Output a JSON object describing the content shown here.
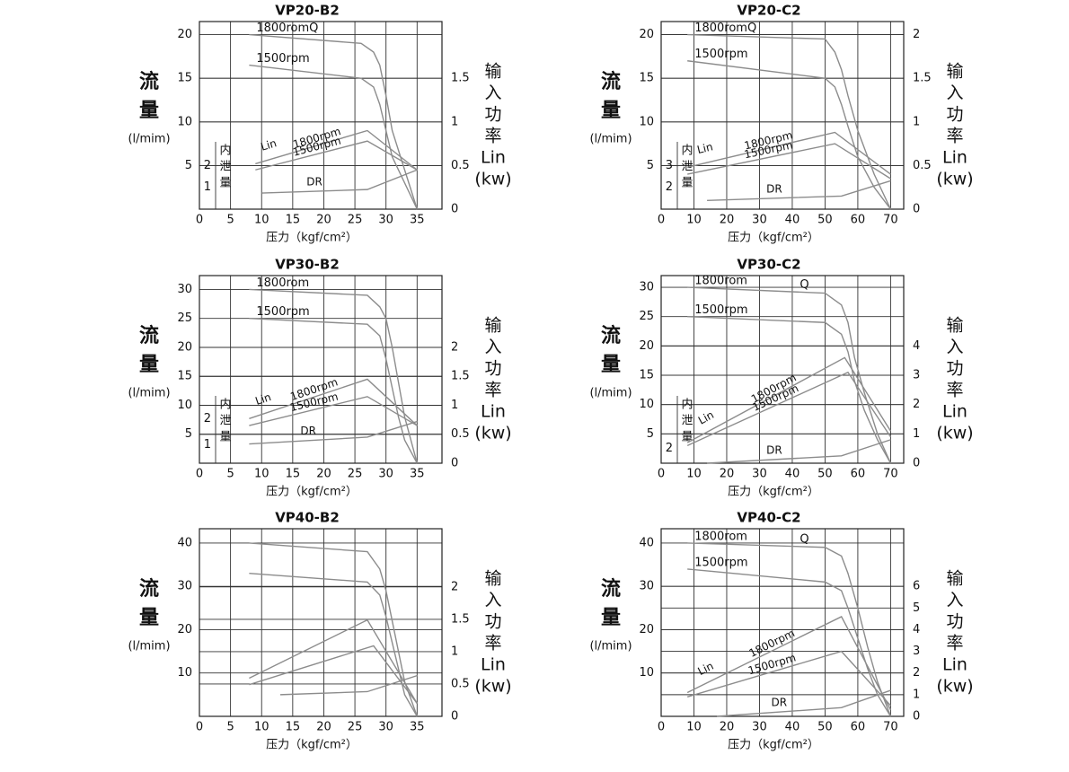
{
  "chart_data": [
    {
      "type": "line",
      "title": "VP20-B2",
      "x_label": "压力（kgf/cm²）",
      "y_label": [
        "流",
        "量"
      ],
      "y_unit": "(l/mim)",
      "y2_label": [
        "输",
        "入",
        "功",
        "率",
        "Lin",
        "(kw)"
      ],
      "leak_label": [
        "内",
        "泄",
        "量"
      ],
      "lin_mark": "Lin",
      "color": "#8c8c8c",
      "grid": true,
      "xlim": [
        0,
        39
      ],
      "xticks": [
        0,
        5,
        10,
        15,
        20,
        25,
        30,
        35
      ],
      "ylim": [
        0,
        21.5
      ],
      "yticks": [
        5,
        10,
        15,
        20
      ],
      "y2lim": [
        0,
        2.15
      ],
      "y2ticks": [
        0,
        0.5,
        1,
        1.5
      ],
      "y3lim": [
        0,
        8.6
      ],
      "y3ticks": [
        1,
        2
      ],
      "series": [
        {
          "name": "1800romQ",
          "axis": "y",
          "x": [
            8,
            26,
            28,
            29,
            30,
            31,
            33,
            35
          ],
          "values": [
            20,
            19,
            18,
            16.5,
            13,
            9,
            4.5,
            0
          ]
        },
        {
          "name": "1500rpm",
          "axis": "y",
          "x": [
            8,
            26,
            28,
            29,
            30,
            31,
            33,
            35
          ],
          "values": [
            16.5,
            15,
            14,
            12,
            9,
            6,
            3,
            0
          ]
        },
        {
          "name": "1800rpm",
          "axis": "y2",
          "x": [
            9,
            27,
            35
          ],
          "values": [
            0.52,
            0.9,
            0.45
          ]
        },
        {
          "name": "1500rpm",
          "axis": "y2",
          "x": [
            9,
            27,
            35
          ],
          "values": [
            0.45,
            0.78,
            0.45
          ]
        },
        {
          "name": "DR",
          "axis": "y3",
          "x": [
            10,
            27,
            35
          ],
          "values": [
            0.74,
            0.9,
            1.8
          ]
        }
      ]
    },
    {
      "type": "line",
      "title": "VP20-C2",
      "x_label": "压力（kgf/cm²）",
      "y_label": [
        "流",
        "量"
      ],
      "y_unit": "(l/mim)",
      "y2_label": [
        "输",
        "入",
        "功",
        "率",
        "Lin",
        "(kw)"
      ],
      "leak_label": [
        "内",
        "泄",
        "量"
      ],
      "lin_mark": "Lin",
      "color": "#8c8c8c",
      "grid": true,
      "xlim": [
        0,
        74
      ],
      "xticks": [
        0,
        10,
        20,
        30,
        40,
        50,
        60,
        70
      ],
      "ylim": [
        0,
        21.5
      ],
      "yticks": [
        5,
        10,
        15,
        20
      ],
      "y2lim": [
        0,
        2.15
      ],
      "y2ticks": [
        0,
        0.5,
        1,
        1.5,
        2
      ],
      "y3lim": [
        1,
        9.6
      ],
      "y3ticks": [
        2,
        3
      ],
      "series": [
        {
          "name": "1800romQ",
          "axis": "y",
          "x": [
            8,
            50,
            53,
            55,
            57,
            60,
            65,
            70
          ],
          "values": [
            20,
            19.5,
            18,
            16,
            13,
            9,
            4,
            0
          ]
        },
        {
          "name": "1500rpm",
          "axis": "y",
          "x": [
            8,
            50,
            53,
            55,
            57,
            60,
            65,
            70
          ],
          "values": [
            17,
            15,
            14,
            12,
            9.5,
            6,
            2.5,
            0
          ]
        },
        {
          "name": "1800rpm",
          "axis": "y2",
          "x": [
            8,
            53,
            70
          ],
          "values": [
            0.48,
            0.88,
            0.4
          ]
        },
        {
          "name": "1500rpm",
          "axis": "y2",
          "x": [
            8,
            53,
            70
          ],
          "values": [
            0.4,
            0.75,
            0.35
          ]
        },
        {
          "name": "DR",
          "axis": "y3",
          "x": [
            14,
            55,
            70
          ],
          "values": [
            1.4,
            1.6,
            2.3
          ]
        }
      ]
    },
    {
      "type": "line",
      "title": "VP30-B2",
      "x_label": "压力（kgf/cm²）",
      "y_label": [
        "流",
        "量"
      ],
      "y_unit": "(l/mim)",
      "y2_label": [
        "输",
        "入",
        "功",
        "率",
        "Lin",
        "(kw)"
      ],
      "leak_label": [
        "内",
        "泄",
        "量"
      ],
      "lin_mark": "Lin",
      "color": "#8c8c8c",
      "grid": true,
      "xlim": [
        0,
        39
      ],
      "xticks": [
        0,
        5,
        10,
        15,
        20,
        25,
        30,
        35
      ],
      "ylim": [
        0,
        32.4
      ],
      "yticks": [
        5,
        10,
        15,
        20,
        25,
        30
      ],
      "y2lim": [
        0,
        3.24
      ],
      "y2ticks": [
        0,
        0.5,
        1,
        1.5,
        2
      ],
      "y3lim": [
        0.3,
        7.5
      ],
      "y3ticks": [
        1,
        2
      ],
      "series": [
        {
          "name": "1800rom",
          "axis": "y",
          "x": [
            8,
            27,
            29,
            30,
            31,
            32,
            33,
            35
          ],
          "values": [
            30,
            29,
            27,
            25,
            20,
            14,
            8,
            0
          ]
        },
        {
          "name": "1500rpm",
          "axis": "y",
          "x": [
            8,
            27,
            29,
            30,
            31,
            32,
            33,
            35
          ],
          "values": [
            25,
            24,
            22,
            18,
            13,
            8,
            4,
            0
          ]
        },
        {
          "name": "1800rpm",
          "axis": "y2",
          "x": [
            8,
            27,
            35
          ],
          "values": [
            0.77,
            1.45,
            0.65
          ]
        },
        {
          "name": "1500rpm",
          "axis": "y2",
          "x": [
            8,
            27,
            35
          ],
          "values": [
            0.65,
            1.15,
            0.65
          ]
        },
        {
          "name": "DR",
          "axis": "y3",
          "x": [
            8,
            27,
            35
          ],
          "values": [
            1.04,
            1.3,
            1.9
          ]
        }
      ]
    },
    {
      "type": "line",
      "title": "VP30-C2",
      "x_label": "压力（kgf/cm²）",
      "y_label": [
        "流",
        "量"
      ],
      "y_unit": "(l/mim)",
      "y2_label": [
        "输",
        "入",
        "功",
        "率",
        "Lin",
        "(kw)"
      ],
      "leak_label": [
        "内",
        "泄",
        "量"
      ],
      "lin_mark": "Lin",
      "q_mark": "Q",
      "color": "#8c8c8c",
      "grid": true,
      "xlim": [
        0,
        74
      ],
      "xticks": [
        0,
        10,
        20,
        30,
        40,
        50,
        60,
        70
      ],
      "ylim": [
        0,
        32
      ],
      "yticks": [
        5,
        10,
        15,
        20,
        25,
        30
      ],
      "y2lim": [
        0,
        6.4
      ],
      "y2ticks": [
        0,
        1,
        2,
        3,
        4
      ],
      "y3lim": [
        1,
        13.8
      ],
      "y3ticks": [
        2
      ],
      "series": [
        {
          "name": "1800rom",
          "axis": "y",
          "x": [
            8,
            50,
            55,
            57,
            59,
            62,
            66,
            70
          ],
          "values": [
            30,
            29,
            27,
            24,
            18,
            12,
            5,
            0
          ]
        },
        {
          "name": "1500rpm",
          "axis": "y",
          "x": [
            8,
            50,
            55,
            57,
            59,
            62,
            66,
            70
          ],
          "values": [
            25,
            24,
            22,
            19,
            14,
            9,
            4,
            0
          ]
        },
        {
          "name": "1800rpm",
          "axis": "y2",
          "x": [
            8,
            56,
            70
          ],
          "values": [
            0.7,
            3.6,
            1.1
          ]
        },
        {
          "name": "1500rpm",
          "axis": "y2",
          "x": [
            8,
            57,
            70
          ],
          "values": [
            0.6,
            3.1,
            0.9
          ]
        },
        {
          "name": "DR",
          "axis": "y3",
          "x": [
            14,
            55,
            70
          ],
          "values": [
            1,
            1.5,
            2.6
          ]
        }
      ]
    },
    {
      "type": "line",
      "title": "VP40-B2",
      "x_label": "压力（kgf/cm²）",
      "y_label": [
        "流",
        "量"
      ],
      "y_unit": "(l/mim)",
      "y2_label": [
        "输",
        "入",
        "功",
        "率",
        "Lin",
        "(kw)"
      ],
      "color": "#8c8c8c",
      "grid": true,
      "xlim": [
        0,
        39
      ],
      "xticks": [
        0,
        5,
        10,
        15,
        20,
        25,
        30,
        35
      ],
      "ylim": [
        0,
        43.3
      ],
      "yticks": [
        10,
        20,
        30,
        40
      ],
      "y2lim": [
        0,
        2.9
      ],
      "y2ticks": [
        0,
        0.5,
        1,
        1.5,
        2
      ],
      "series": [
        {
          "axis": "y",
          "x": [
            8,
            27,
            29,
            30,
            31,
            32,
            33,
            35
          ],
          "values": [
            40,
            38,
            34,
            29,
            22,
            15,
            8,
            0
          ]
        },
        {
          "axis": "y",
          "x": [
            8,
            27,
            29,
            30,
            31,
            32,
            33,
            35
          ],
          "values": [
            33,
            31,
            28,
            23,
            17,
            11,
            5,
            0
          ]
        },
        {
          "axis": "y2",
          "x": [
            8,
            27,
            35
          ],
          "values": [
            0.59,
            1.49,
            0.2
          ]
        },
        {
          "axis": "y2",
          "x": [
            8,
            28,
            35
          ],
          "values": [
            0.49,
            1.09,
            0.2
          ]
        },
        {
          "axis": "y",
          "x": [
            13,
            27,
            35
          ],
          "values": [
            5,
            5.7,
            9.4
          ]
        }
      ]
    },
    {
      "type": "line",
      "title": "VP40-C2",
      "x_label": "压力（kgf/cm²）",
      "y_label": [
        "流",
        "量"
      ],
      "y_unit": "(l/mim)",
      "y2_label": [
        "输",
        "入",
        "功",
        "率",
        "Lin",
        "(kw)"
      ],
      "lin_mark": "Lin",
      "q_mark": "Q",
      "color": "#8c8c8c",
      "grid": true,
      "xlim": [
        0,
        74
      ],
      "xticks": [
        0,
        10,
        20,
        30,
        40,
        50,
        60,
        70
      ],
      "ylim": [
        0,
        43.3
      ],
      "yticks": [
        10,
        20,
        30,
        40
      ],
      "y2lim": [
        0,
        8.66
      ],
      "y2ticks": [
        0,
        1,
        2,
        3,
        4,
        5,
        6
      ],
      "series": [
        {
          "name": "1800rom",
          "axis": "y",
          "x": [
            8,
            50,
            55,
            57,
            60,
            63,
            66,
            70
          ],
          "values": [
            40,
            39,
            37,
            33,
            25,
            16,
            8,
            0
          ]
        },
        {
          "name": "1500rpm",
          "axis": "y",
          "x": [
            8,
            50,
            55,
            57,
            60,
            63,
            66,
            70
          ],
          "values": [
            34,
            31,
            29,
            25,
            18,
            11,
            5,
            0
          ]
        },
        {
          "name": "1800rpm",
          "axis": "y2",
          "x": [
            8,
            55,
            70
          ],
          "values": [
            1.1,
            4.6,
            0.3
          ]
        },
        {
          "name": "1500rpm",
          "axis": "y2",
          "x": [
            8,
            55,
            70
          ],
          "values": [
            0.9,
            3.0,
            0.5
          ]
        },
        {
          "name": "DR",
          "axis": "y",
          "x": [
            17,
            55,
            70
          ],
          "values": [
            0,
            2,
            6
          ]
        }
      ]
    }
  ]
}
